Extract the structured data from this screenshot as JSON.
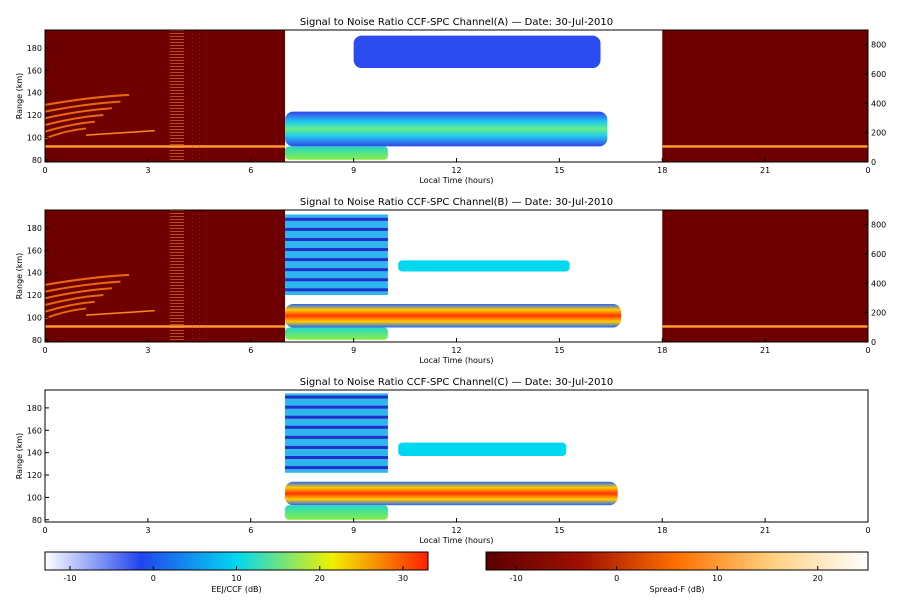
{
  "chart_data": [
    {
      "type": "heatmap",
      "title": "Signal to Noise Ratio CCF-SPC Channel(A) — Date: 30-Jul-2010",
      "xlabel": "Local Time (hours)",
      "ylabel": "Range (km)",
      "xlim": [
        0,
        24
      ],
      "ylim": [
        78,
        196
      ],
      "y2lim": [
        0,
        900
      ],
      "x_ticks": [
        "0",
        "3",
        "6",
        "9",
        "12",
        "15",
        "18",
        "21",
        "0"
      ],
      "y_ticks": [
        "80",
        "100",
        "120",
        "140",
        "160",
        "180"
      ],
      "y2_ticks": [
        "0",
        "200",
        "400",
        "600",
        "800"
      ],
      "segments": [
        {
          "colormap": "Spread-F",
          "x": [
            0,
            7
          ]
        },
        {
          "colormap": "EEJ/CCF",
          "x": [
            7,
            18
          ]
        },
        {
          "colormap": "Spread-F",
          "x": [
            18,
            24
          ]
        }
      ],
      "ccf_layers": [
        {
          "x": [
            9.0,
            16.2
          ],
          "y": [
            162,
            191
          ],
          "snr_db": -2
        },
        {
          "x": [
            7.0,
            16.4
          ],
          "y": [
            92,
            123
          ],
          "snr_db": 5
        },
        {
          "x": [
            7.0,
            10.0
          ],
          "y": [
            80,
            92
          ],
          "snr_db": 12
        }
      ]
    },
    {
      "type": "heatmap",
      "title": "Signal to Noise Ratio CCF-SPC Channel(B) — Date: 30-Jul-2010",
      "xlabel": "Local Time (hours)",
      "ylabel": "Range (km)",
      "xlim": [
        0,
        24
      ],
      "ylim": [
        78,
        196
      ],
      "y2lim": [
        0,
        900
      ],
      "x_ticks": [
        "0",
        "3",
        "6",
        "9",
        "12",
        "15",
        "18",
        "21",
        "0"
      ],
      "y_ticks": [
        "80",
        "100",
        "120",
        "140",
        "160",
        "180"
      ],
      "y2_ticks": [
        "0",
        "200",
        "400",
        "600",
        "800"
      ],
      "segments": [
        {
          "colormap": "Spread-F",
          "x": [
            0,
            7
          ]
        },
        {
          "colormap": "EEJ/CCF",
          "x": [
            7,
            18
          ]
        },
        {
          "colormap": "Spread-F",
          "x": [
            18,
            24
          ]
        }
      ],
      "ccf_layers": [
        {
          "x": [
            7.0,
            10.0
          ],
          "y": [
            120,
            192
          ],
          "snr_db": 3,
          "striped": true
        },
        {
          "x": [
            10.3,
            15.3
          ],
          "y": [
            141,
            151
          ],
          "snr_db": 10
        },
        {
          "x": [
            7.0,
            16.8
          ],
          "y": [
            91,
            112
          ],
          "snr_db": 27
        },
        {
          "x": [
            7.0,
            10.0
          ],
          "y": [
            80,
            91
          ],
          "snr_db": 17
        }
      ]
    },
    {
      "type": "heatmap",
      "title": "Signal to Noise Ratio CCF-SPC Channel(C) — Date: 30-Jul-2010",
      "xlabel": "Local Time (hours)",
      "ylabel": "Range (km)",
      "xlim": [
        0,
        24
      ],
      "ylim": [
        78,
        196
      ],
      "x_ticks": [
        "0",
        "3",
        "6",
        "9",
        "12",
        "15",
        "18",
        "21",
        "0"
      ],
      "y_ticks": [
        "80",
        "100",
        "120",
        "140",
        "160",
        "180"
      ],
      "segments": [
        {
          "colormap": "EEJ/CCF",
          "x": [
            7,
            18
          ]
        }
      ],
      "ccf_layers": [
        {
          "x": [
            7.0,
            10.0
          ],
          "y": [
            122,
            193
          ],
          "snr_db": 3,
          "striped": true
        },
        {
          "x": [
            10.3,
            15.2
          ],
          "y": [
            137,
            149
          ],
          "snr_db": 10
        },
        {
          "x": [
            7.0,
            16.7
          ],
          "y": [
            93,
            114
          ],
          "snr_db": 26
        },
        {
          "x": [
            7.0,
            10.0
          ],
          "y": [
            80,
            93
          ],
          "snr_db": 12
        }
      ]
    }
  ],
  "colorbars": [
    {
      "label": "EEJ/CCF (dB)",
      "ticks": [
        "-10",
        "0",
        "10",
        "20",
        "30"
      ],
      "range": [
        -13,
        33
      ],
      "stops": [
        "#ffffff",
        "#2244ee",
        "#00d8f0",
        "#f0f000",
        "#ff2000"
      ]
    },
    {
      "label": "Spread-F (dB)",
      "ticks": [
        "-10",
        "0",
        "10",
        "20"
      ],
      "range": [
        -13,
        25
      ],
      "stops": [
        "#5a0000",
        "#a01000",
        "#ff7000",
        "#ffd080",
        "#ffffff"
      ]
    }
  ]
}
